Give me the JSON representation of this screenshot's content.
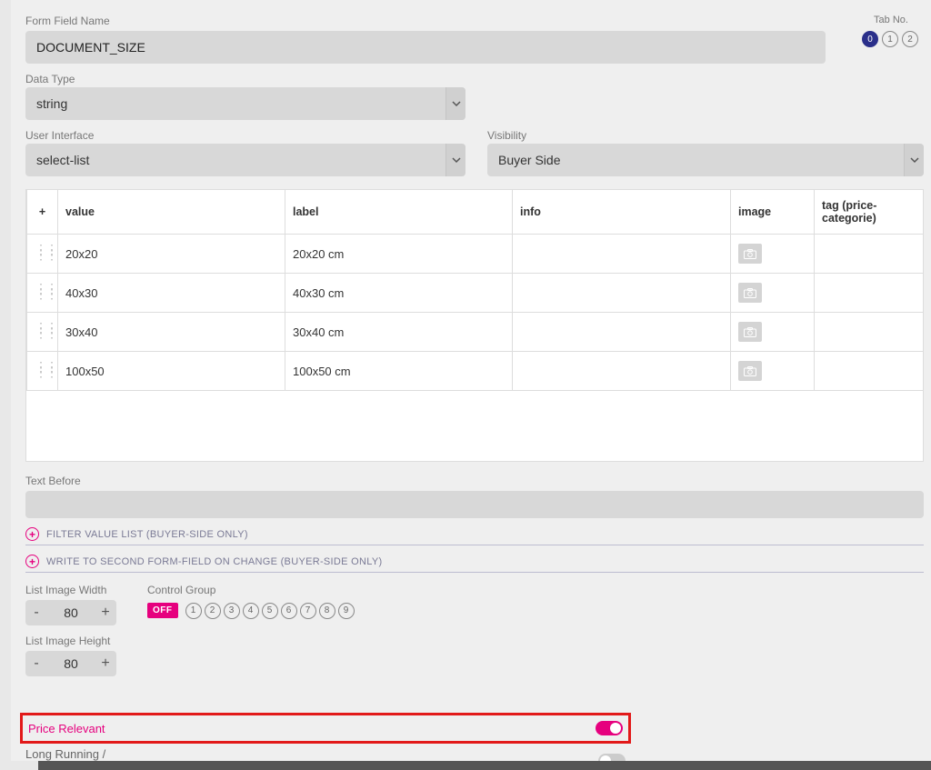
{
  "colors": {
    "accent": "#e6007e",
    "tab_active": "#2a2f8a",
    "highlight_border": "#e21919"
  },
  "header": {
    "form_field_name_label": "Form Field Name",
    "form_field_name_value": "DOCUMENT_SIZE",
    "tab_no_label": "Tab No.",
    "tabs": [
      "0",
      "1",
      "2"
    ],
    "active_tab_index": 0
  },
  "data_type": {
    "label": "Data Type",
    "value": "string"
  },
  "user_interface": {
    "label": "User Interface",
    "value": "select-list"
  },
  "visibility": {
    "label": "Visibility",
    "value": "Buyer Side"
  },
  "table": {
    "add_button": "+",
    "columns": {
      "value": "value",
      "label": "label",
      "info": "info",
      "image": "image",
      "tag": "tag (price-categorie)"
    },
    "rows": [
      {
        "value": "20x20",
        "label": "20x20 cm",
        "info": "",
        "tag": ""
      },
      {
        "value": "40x30",
        "label": "40x30 cm",
        "info": "",
        "tag": ""
      },
      {
        "value": "30x40",
        "label": "30x40 cm",
        "info": "",
        "tag": ""
      },
      {
        "value": "100x50",
        "label": "100x50 cm",
        "info": "",
        "tag": ""
      }
    ]
  },
  "text_before": {
    "label": "Text Before",
    "value": ""
  },
  "expanders": {
    "filter_value_list": "FILTER VALUE LIST (BUYER-SIDE ONLY)",
    "write_second_field": "WRITE TO SECOND FORM-FIELD ON CHANGE (BUYER-SIDE ONLY)"
  },
  "list_image_width": {
    "label": "List Image Width",
    "value": "80"
  },
  "list_image_height": {
    "label": "List Image Height",
    "value": "80"
  },
  "control_group": {
    "label": "Control Group",
    "off_label": "OFF",
    "options": [
      "1",
      "2",
      "3",
      "4",
      "5",
      "6",
      "7",
      "8",
      "9"
    ]
  },
  "toggles": {
    "price_relevant": {
      "label": "Price Relevant",
      "on": true
    },
    "long_running": {
      "label": "Long Running /\nUpdate Thumbnails",
      "on": false
    }
  }
}
